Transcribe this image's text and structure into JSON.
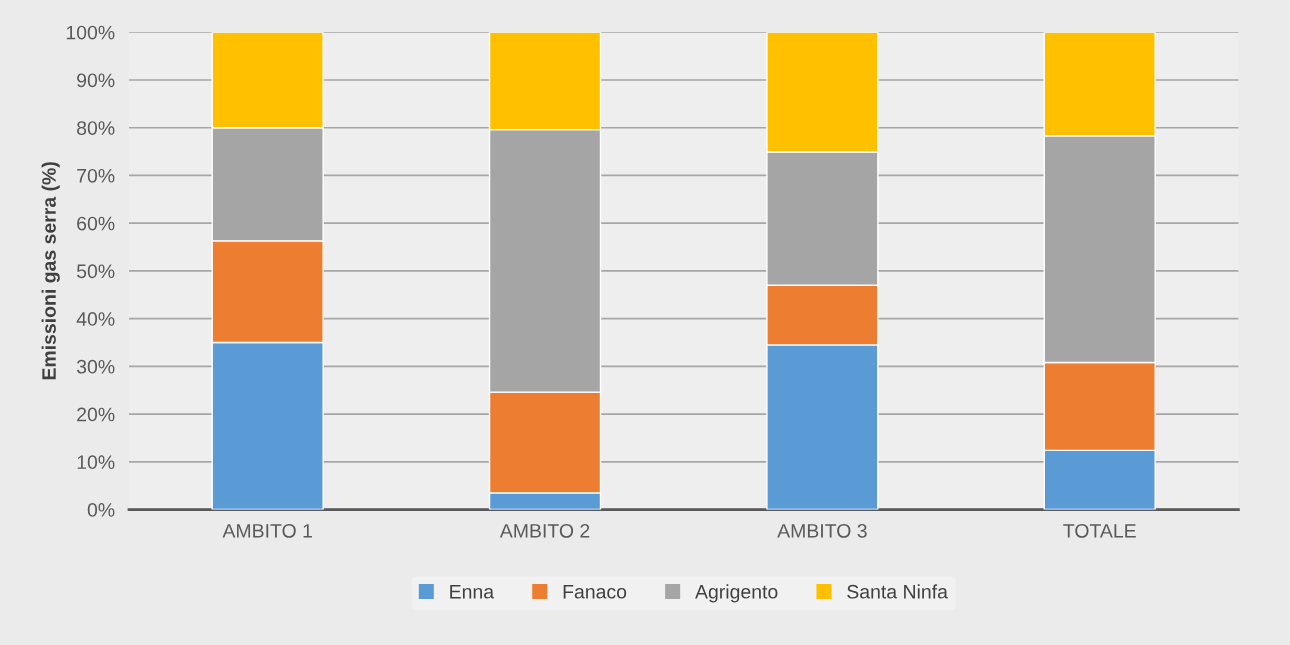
{
  "chart_data": {
    "type": "bar",
    "stacked": true,
    "ylabel": "Emissioni gas serra (%)",
    "categories": [
      "AMBITO 1",
      "AMBITO 2",
      "AMBITO 3",
      "TOTALE"
    ],
    "series": [
      {
        "name": "Enna",
        "color": "#5b9bd5",
        "values": [
          35.0,
          3.5,
          34.5,
          12.4
        ]
      },
      {
        "name": "Fanaco",
        "color": "#ed7d31",
        "values": [
          21.3,
          21.1,
          12.5,
          18.4
        ]
      },
      {
        "name": "Agrigento",
        "color": "#a5a5a5",
        "values": [
          23.7,
          55.0,
          27.9,
          47.5
        ]
      },
      {
        "name": "Santa Ninfa",
        "color": "#ffc000",
        "values": [
          20.0,
          20.4,
          25.1,
          21.7
        ]
      }
    ],
    "ylim": [
      0,
      100
    ],
    "yticks": [
      {
        "value": 0,
        "label": "0%"
      },
      {
        "value": 10,
        "label": "10%"
      },
      {
        "value": 20,
        "label": "20%"
      },
      {
        "value": 30,
        "label": "30%"
      },
      {
        "value": 40,
        "label": "40%"
      },
      {
        "value": 50,
        "label": "50%"
      },
      {
        "value": 60,
        "label": "60%"
      },
      {
        "value": 70,
        "label": "70%"
      },
      {
        "value": 80,
        "label": "80%"
      },
      {
        "value": 90,
        "label": "90%"
      },
      {
        "value": 100,
        "label": "100%"
      }
    ],
    "grid": "y",
    "legend": "bottom"
  }
}
